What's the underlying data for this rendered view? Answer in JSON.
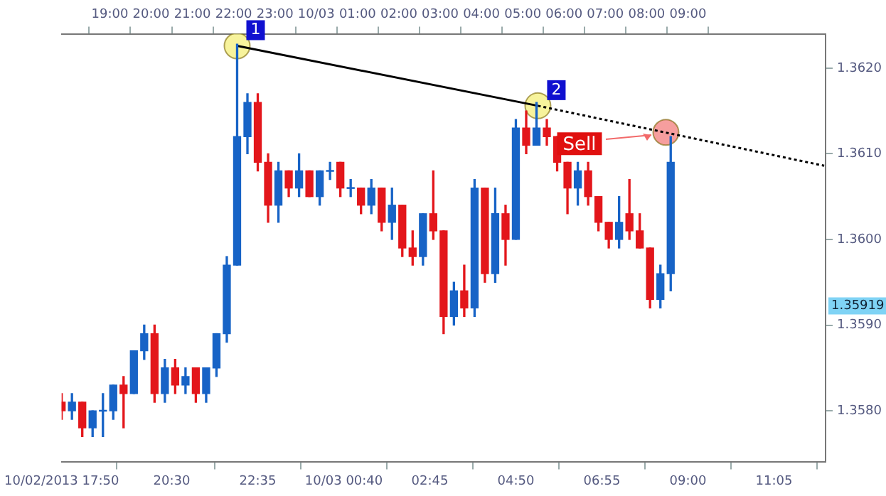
{
  "chart_data": {
    "type": "candlestick",
    "x": [
      "2013-10-02T17:50",
      "2013-10-02T18:05",
      "2013-10-02T18:20",
      "2013-10-02T18:35",
      "2013-10-02T18:50",
      "2013-10-02T19:05",
      "2013-10-02T19:20",
      "2013-10-02T19:35",
      "2013-10-02T19:50",
      "2013-10-02T20:05",
      "2013-10-02T20:20",
      "2013-10-02T20:35",
      "2013-10-02T20:50",
      "2013-10-02T21:05",
      "2013-10-02T21:20",
      "2013-10-02T21:35",
      "2013-10-02T21:50",
      "2013-10-02T22:05",
      "2013-10-02T22:20",
      "2013-10-02T22:35",
      "2013-10-02T22:50",
      "2013-10-02T23:05",
      "2013-10-02T23:20",
      "2013-10-02T23:35",
      "2013-10-02T23:50",
      "2013-10-03T00:05",
      "2013-10-03T00:20",
      "2013-10-03T00:35",
      "2013-10-03T00:50",
      "2013-10-03T01:05",
      "2013-10-03T01:20",
      "2013-10-03T01:35",
      "2013-10-03T01:50",
      "2013-10-03T02:05",
      "2013-10-03T02:20",
      "2013-10-03T02:35",
      "2013-10-03T02:50",
      "2013-10-03T03:05",
      "2013-10-03T03:20",
      "2013-10-03T03:35",
      "2013-10-03T03:50",
      "2013-10-03T04:05",
      "2013-10-03T04:20",
      "2013-10-03T04:35",
      "2013-10-03T04:50",
      "2013-10-03T05:05",
      "2013-10-03T05:20",
      "2013-10-03T05:35",
      "2013-10-03T05:50",
      "2013-10-03T06:05",
      "2013-10-03T06:20",
      "2013-10-03T06:35",
      "2013-10-03T06:50",
      "2013-10-03T07:05",
      "2013-10-03T07:20",
      "2013-10-03T07:35",
      "2013-10-03T07:50",
      "2013-10-03T08:05",
      "2013-10-03T08:20",
      "2013-10-03T08:35"
    ],
    "ohlc": [
      [
        1.3581,
        1.3582,
        1.3579,
        1.358
      ],
      [
        1.358,
        1.3582,
        1.3579,
        1.3581
      ],
      [
        1.3581,
        1.3581,
        1.3577,
        1.3578
      ],
      [
        1.3578,
        1.358,
        1.3577,
        1.358
      ],
      [
        1.358,
        1.3582,
        1.3577,
        1.358
      ],
      [
        1.358,
        1.3583,
        1.3579,
        1.3583
      ],
      [
        1.3583,
        1.3584,
        1.3578,
        1.3582
      ],
      [
        1.3582,
        1.3587,
        1.3582,
        1.3587
      ],
      [
        1.3587,
        1.359,
        1.3586,
        1.3589
      ],
      [
        1.3589,
        1.359,
        1.3581,
        1.3582
      ],
      [
        1.3582,
        1.3586,
        1.3581,
        1.3585
      ],
      [
        1.3585,
        1.3586,
        1.3582,
        1.3583
      ],
      [
        1.3583,
        1.3585,
        1.3582,
        1.3584
      ],
      [
        1.3585,
        1.3585,
        1.3581,
        1.3582
      ],
      [
        1.3582,
        1.3585,
        1.3581,
        1.3585
      ],
      [
        1.3585,
        1.3589,
        1.3584,
        1.3589
      ],
      [
        1.3589,
        1.3598,
        1.3588,
        1.3597
      ],
      [
        1.3597,
        1.36228,
        1.3597,
        1.3612
      ],
      [
        1.3612,
        1.3617,
        1.361,
        1.3616
      ],
      [
        1.3616,
        1.3617,
        1.3608,
        1.3609
      ],
      [
        1.3609,
        1.361,
        1.3602,
        1.3604
      ],
      [
        1.3604,
        1.3609,
        1.3602,
        1.3608
      ],
      [
        1.3608,
        1.3608,
        1.3605,
        1.3606
      ],
      [
        1.3606,
        1.361,
        1.3605,
        1.3608
      ],
      [
        1.3608,
        1.3608,
        1.3605,
        1.3605
      ],
      [
        1.3605,
        1.3608,
        1.3604,
        1.3608
      ],
      [
        1.3608,
        1.3609,
        1.3607,
        1.3608
      ],
      [
        1.3609,
        1.3609,
        1.3605,
        1.3606
      ],
      [
        1.3606,
        1.3607,
        1.3605,
        1.3606
      ],
      [
        1.3606,
        1.3606,
        1.3603,
        1.3604
      ],
      [
        1.3604,
        1.3607,
        1.3603,
        1.3606
      ],
      [
        1.3606,
        1.3606,
        1.3601,
        1.3602
      ],
      [
        1.3602,
        1.3606,
        1.36,
        1.3604
      ],
      [
        1.3604,
        1.3604,
        1.3598,
        1.3599
      ],
      [
        1.3599,
        1.3601,
        1.3597,
        1.3598
      ],
      [
        1.3598,
        1.3603,
        1.3597,
        1.3603
      ],
      [
        1.3603,
        1.3608,
        1.36,
        1.3601
      ],
      [
        1.3601,
        1.3601,
        1.3589,
        1.3591
      ],
      [
        1.3591,
        1.3595,
        1.359,
        1.3594
      ],
      [
        1.3594,
        1.3597,
        1.3591,
        1.3592
      ],
      [
        1.3592,
        1.3607,
        1.3591,
        1.3606
      ],
      [
        1.3606,
        1.3606,
        1.3595,
        1.3596
      ],
      [
        1.3596,
        1.3606,
        1.3595,
        1.3603
      ],
      [
        1.3603,
        1.3604,
        1.3597,
        1.36
      ],
      [
        1.36,
        1.3614,
        1.36,
        1.3613
      ],
      [
        1.3613,
        1.3615,
        1.361,
        1.3611
      ],
      [
        1.3611,
        1.3616,
        1.3611,
        1.3613
      ],
      [
        1.3613,
        1.3614,
        1.3611,
        1.3612
      ],
      [
        1.3612,
        1.3612,
        1.3608,
        1.3609
      ],
      [
        1.3609,
        1.3609,
        1.3603,
        1.3606
      ],
      [
        1.3606,
        1.3609,
        1.3604,
        1.3608
      ],
      [
        1.3608,
        1.3609,
        1.3604,
        1.3605
      ],
      [
        1.3605,
        1.3605,
        1.3601,
        1.3602
      ],
      [
        1.3602,
        1.3602,
        1.3599,
        1.36
      ],
      [
        1.36,
        1.3605,
        1.3599,
        1.3602
      ],
      [
        1.3603,
        1.3607,
        1.36,
        1.3601
      ],
      [
        1.3601,
        1.3603,
        1.3599,
        1.3599
      ],
      [
        1.3599,
        1.3599,
        1.3592,
        1.3593
      ],
      [
        1.3593,
        1.3597,
        1.3592,
        1.3596
      ],
      [
        1.3596,
        1.3612,
        1.3594,
        1.3609
      ]
    ],
    "colors": [
      "#e3161b",
      "#1763c6",
      "#e3161b",
      "#1763c6",
      "#1763c6",
      "#1763c6",
      "#e3161b",
      "#1763c6",
      "#1763c6",
      "#e3161b",
      "#1763c6",
      "#e3161b",
      "#1763c6",
      "#e3161b",
      "#1763c6",
      "#1763c6",
      "#1763c6",
      "#1763c6",
      "#1763c6",
      "#e3161b",
      "#e3161b",
      "#1763c6",
      "#e3161b",
      "#1763c6",
      "#e3161b",
      "#1763c6",
      "#1763c6",
      "#e3161b",
      "#1763c6",
      "#e3161b",
      "#1763c6",
      "#e3161b",
      "#1763c6",
      "#e3161b",
      "#e3161b",
      "#1763c6",
      "#e3161b",
      "#e3161b",
      "#1763c6",
      "#e3161b",
      "#1763c6",
      "#e3161b",
      "#1763c6",
      "#e3161b",
      "#1763c6",
      "#e3161b",
      "#1763c6",
      "#e3161b",
      "#e3161b",
      "#e3161b",
      "#1763c6",
      "#e3161b",
      "#e3161b",
      "#e3161b",
      "#1763c6",
      "#e3161b",
      "#e3161b",
      "#e3161b",
      "#1763c6",
      "#1763c6"
    ],
    "series": [
      {
        "type": "line",
        "color": "#000000",
        "line_style": "solid",
        "x": [
          "2013-10-02T22:05",
          "2013-10-03T05:22"
        ],
        "values": [
          1.36226,
          1.36156
        ]
      },
      {
        "type": "line",
        "color": "#000000",
        "line_style": "dotted",
        "x": [
          "2013-10-03T05:22",
          "2013-10-03T12:18"
        ],
        "values": [
          1.36156,
          1.36086
        ]
      },
      {
        "type": "scatter",
        "marker": "circle",
        "colors": [
          "#f3ee70",
          "#f3ee70",
          "#f27272"
        ],
        "x": [
          "2013-10-02T22:05",
          "2013-10-03T05:22",
          "2013-10-03T08:28"
        ],
        "values": [
          1.36226,
          1.36156,
          1.36125
        ]
      }
    ],
    "annotations": [
      {
        "text": "1",
        "x": "2013-10-02T22:05",
        "y": 1.36226
      },
      {
        "text": "2",
        "x": "2013-10-03T05:22",
        "y": 1.36156
      },
      "Sell",
      "1.35919"
    ],
    "xlim": [
      "2013-10-02T17:50",
      "2013-10-03T12:20"
    ],
    "xticks": [
      {
        "value": "2013-10-02T17:50",
        "label": "10/02/2013 17:50"
      },
      {
        "value": "2013-10-02T20:30",
        "label": "20:30"
      },
      {
        "value": "2013-10-02T22:35",
        "label": "22:35"
      },
      {
        "value": "2013-10-03T00:40",
        "label": "10/03 00:40"
      },
      {
        "value": "2013-10-03T02:45",
        "label": "02:45"
      },
      {
        "value": "2013-10-03T04:50",
        "label": "04:50"
      },
      {
        "value": "2013-10-03T06:55",
        "label": "06:55"
      },
      {
        "value": "2013-10-03T09:00",
        "label": "09:00"
      },
      {
        "value": "2013-10-03T11:05",
        "label": "11:05"
      }
    ],
    "x2lim": [
      "2013-10-02T17:50",
      "2013-10-03T12:20"
    ],
    "x2ticks": [
      {
        "value": "2013-10-02T19:00",
        "label": "19:00"
      },
      {
        "value": "2013-10-02T20:00",
        "label": "20:00"
      },
      {
        "value": "2013-10-02T21:00",
        "label": "21:00"
      },
      {
        "value": "2013-10-02T22:00",
        "label": "22:00"
      },
      {
        "value": "2013-10-02T23:00",
        "label": "23:00"
      },
      {
        "value": "2013-10-03T00:00",
        "label": "10/03"
      },
      {
        "value": "2013-10-03T01:00",
        "label": "01:00"
      },
      {
        "value": "2013-10-03T02:00",
        "label": "02:00"
      },
      {
        "value": "2013-10-03T03:00",
        "label": "03:00"
      },
      {
        "value": "2013-10-03T04:00",
        "label": "04:00"
      },
      {
        "value": "2013-10-03T05:00",
        "label": "05:00"
      },
      {
        "value": "2013-10-03T06:00",
        "label": "06:00"
      },
      {
        "value": "2013-10-03T07:00",
        "label": "07:00"
      },
      {
        "value": "2013-10-03T08:00",
        "label": "08:00"
      },
      {
        "value": "2013-10-03T09:00",
        "label": "09:00"
      }
    ],
    "ylim": [
      1.3574,
      1.3624
    ],
    "yticks": [
      {
        "value": 1.358,
        "label": "1.3580"
      },
      {
        "value": 1.359,
        "label": "1.3590"
      },
      {
        "value": 1.36,
        "label": "1.3600"
      },
      {
        "value": 1.361,
        "label": "1.3610"
      },
      {
        "value": 1.362,
        "label": "1.3620"
      }
    ]
  }
}
